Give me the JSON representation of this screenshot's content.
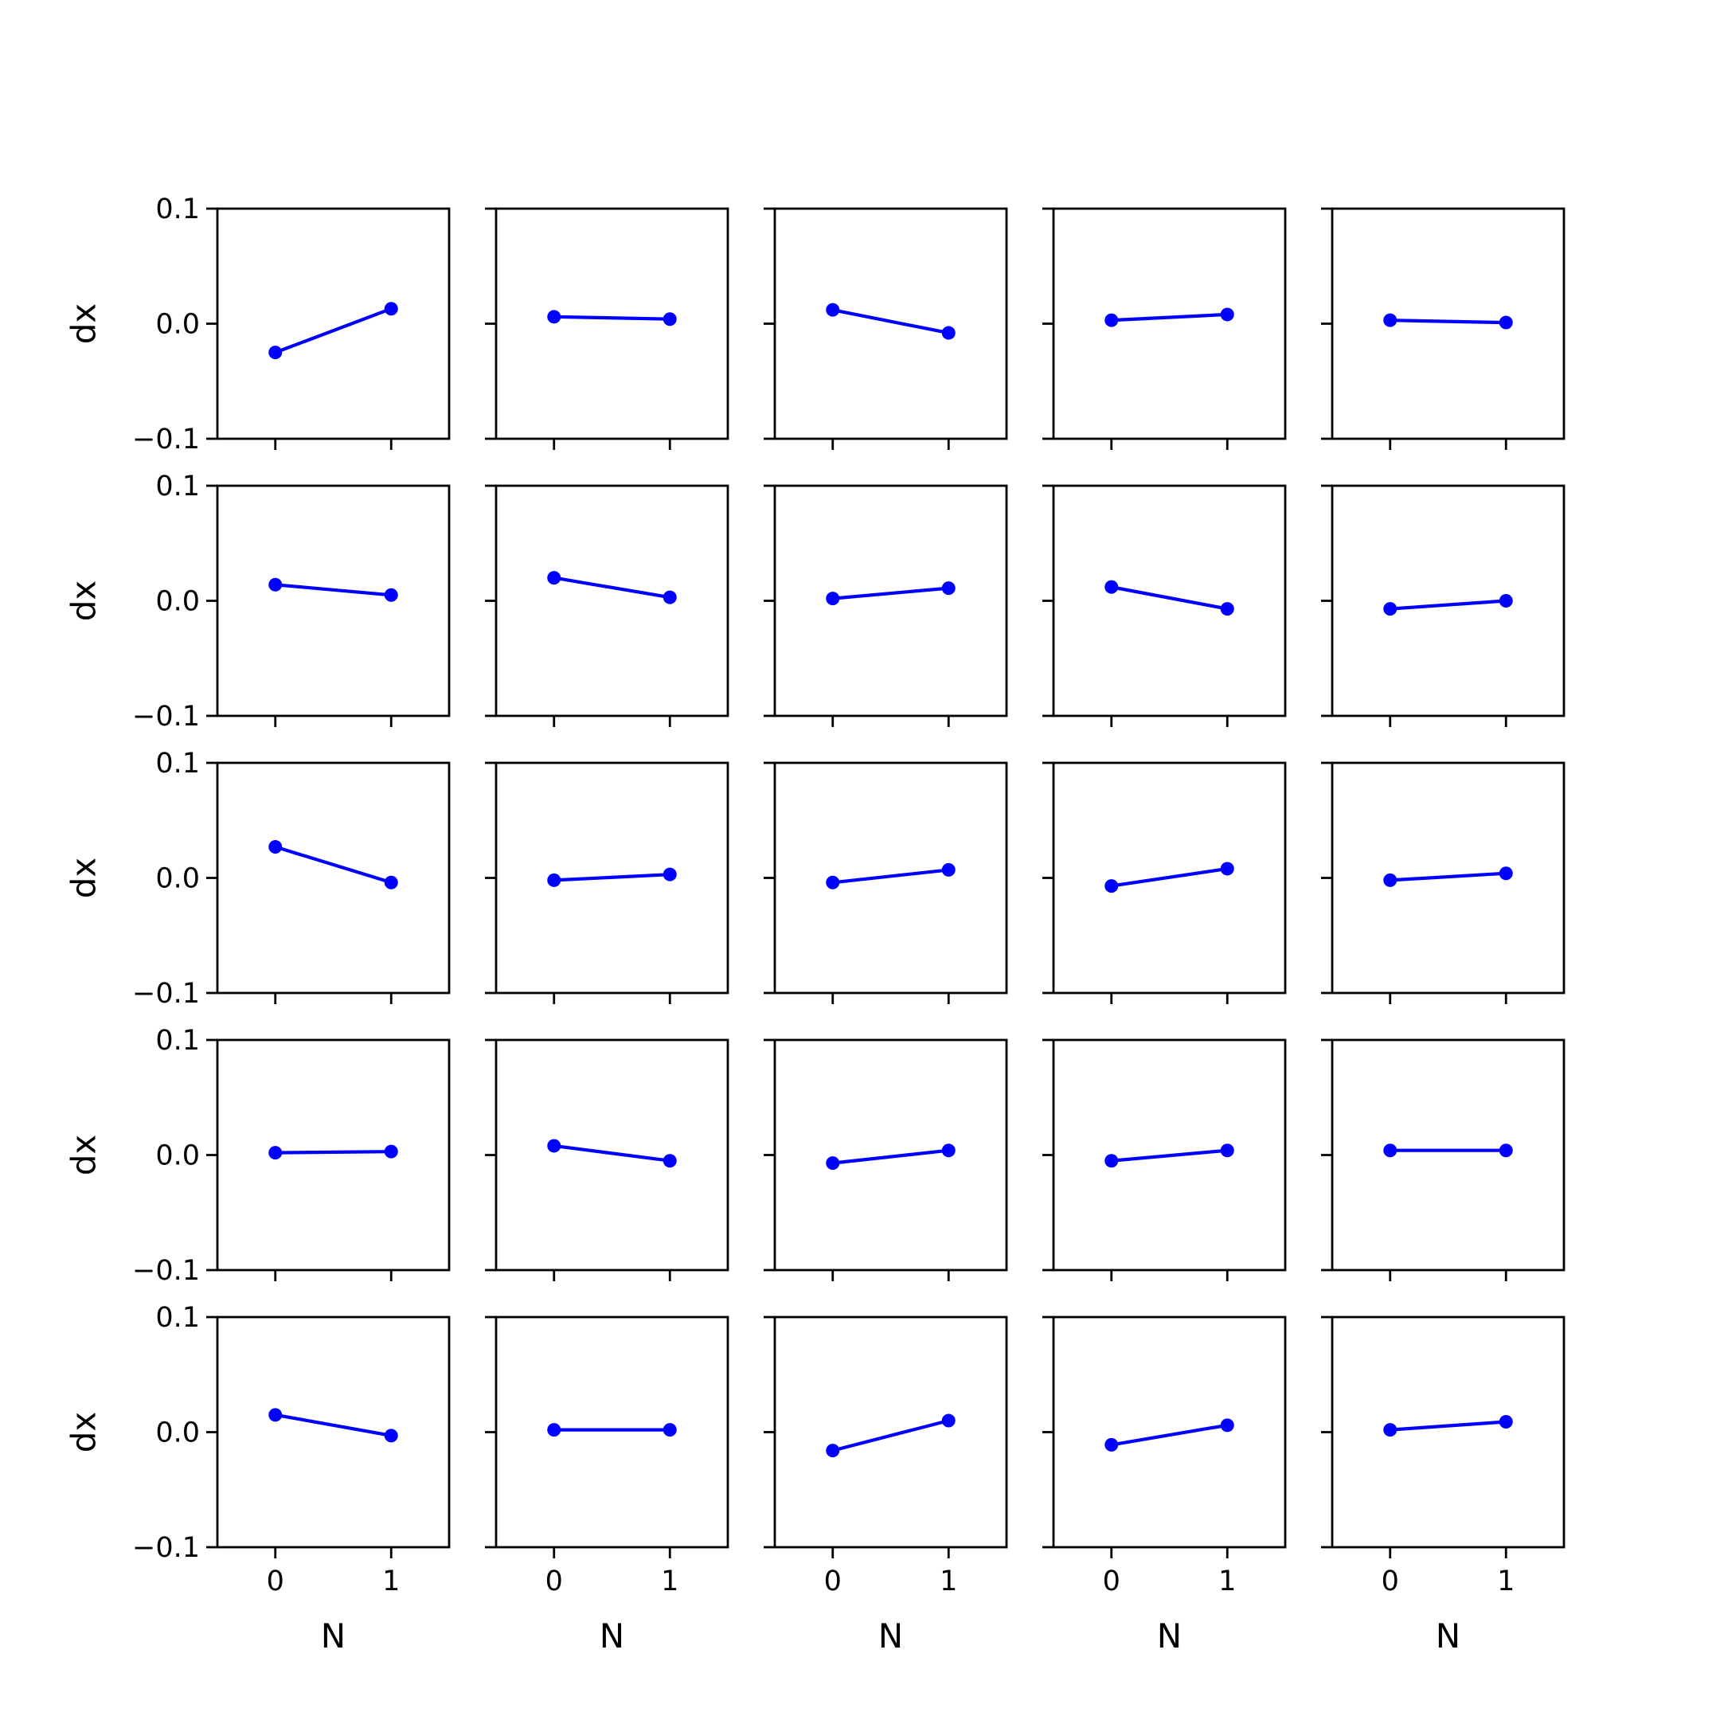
{
  "chart_data": {
    "type": "line",
    "layout": {
      "rows": 5,
      "cols": 5
    },
    "line_color": "#0000ff",
    "marker": "circle",
    "grid": false,
    "shared_x": [
      0,
      1
    ],
    "xlim": [
      -0.5,
      1.5
    ],
    "ylim": [
      -0.1,
      0.1
    ],
    "xticks": [
      "0",
      "1"
    ],
    "yticks": [
      "−0.1",
      "0.0",
      "0.1"
    ],
    "xlabel": "N",
    "ylabel": "dx",
    "panels": [
      {
        "y": [
          -0.025,
          0.013
        ]
      },
      {
        "y": [
          0.006,
          0.004
        ]
      },
      {
        "y": [
          0.012,
          -0.008
        ]
      },
      {
        "y": [
          0.003,
          0.008
        ]
      },
      {
        "y": [
          0.003,
          0.001
        ]
      },
      {
        "y": [
          0.014,
          0.005
        ]
      },
      {
        "y": [
          0.02,
          0.003
        ]
      },
      {
        "y": [
          0.002,
          0.011
        ]
      },
      {
        "y": [
          0.012,
          -0.007
        ]
      },
      {
        "y": [
          -0.007,
          0.0
        ]
      },
      {
        "y": [
          0.027,
          -0.004
        ]
      },
      {
        "y": [
          -0.002,
          0.003
        ]
      },
      {
        "y": [
          -0.004,
          0.007
        ]
      },
      {
        "y": [
          -0.007,
          0.008
        ]
      },
      {
        "y": [
          -0.002,
          0.004
        ]
      },
      {
        "y": [
          0.002,
          0.003
        ]
      },
      {
        "y": [
          0.008,
          -0.005
        ]
      },
      {
        "y": [
          -0.007,
          0.004
        ]
      },
      {
        "y": [
          -0.005,
          0.004
        ]
      },
      {
        "y": [
          0.004,
          0.004
        ]
      },
      {
        "y": [
          0.015,
          -0.003
        ]
      },
      {
        "y": [
          0.002,
          0.002
        ]
      },
      {
        "y": [
          -0.016,
          0.01
        ]
      },
      {
        "y": [
          -0.011,
          0.006
        ]
      },
      {
        "y": [
          0.002,
          0.009
        ]
      }
    ]
  }
}
